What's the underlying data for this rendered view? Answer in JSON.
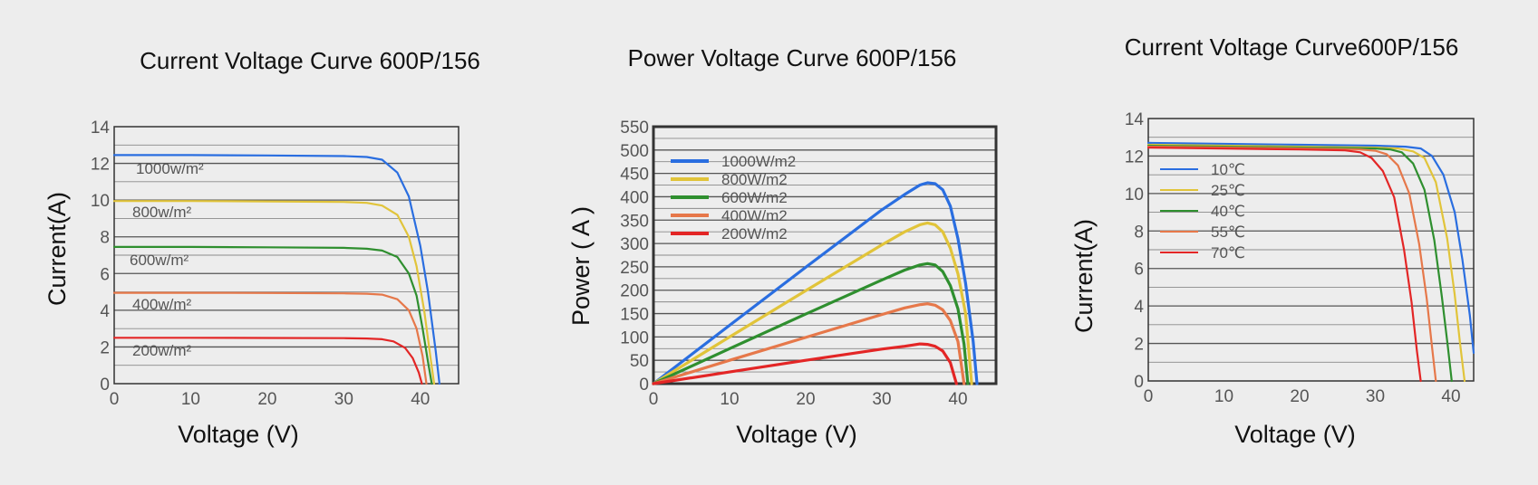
{
  "colors": {
    "blue": "#2a6ee0",
    "yellow": "#e1c43a",
    "green": "#2f8f2f",
    "orange": "#e6784a",
    "red": "#e32626",
    "frame": "#333333",
    "grid": "#7a7a7a",
    "background": "#ededed"
  },
  "chart_data": [
    {
      "type": "line",
      "title": "Current Voltage Curve 600P/156",
      "xlabel": "Voltage (V)",
      "ylabel": "Current(A)",
      "xlim": [
        0,
        45
      ],
      "ylim": [
        0,
        14
      ],
      "x_ticks": [
        "0",
        "10",
        "20",
        "30",
        "40"
      ],
      "y_ticks": [
        "0",
        "2",
        "4",
        "6",
        "8",
        "10",
        "12",
        "14"
      ],
      "grid": "horizontal",
      "series": [
        {
          "name": "1000w/m²",
          "color": "blue",
          "x": [
            0,
            10,
            20,
            30,
            33,
            35,
            37,
            38.5,
            40,
            41,
            42,
            42.5
          ],
          "y": [
            12.45,
            12.45,
            12.43,
            12.4,
            12.35,
            12.2,
            11.5,
            10.2,
            7.5,
            5.0,
            1.8,
            0
          ]
        },
        {
          "name": "800w/m²",
          "color": "yellow",
          "x": [
            0,
            10,
            20,
            30,
            33,
            35,
            37,
            38.5,
            39.5,
            40.5,
            41.3,
            41.8
          ],
          "y": [
            9.95,
            9.95,
            9.93,
            9.9,
            9.85,
            9.7,
            9.2,
            8.0,
            6.4,
            4.0,
            1.5,
            0
          ]
        },
        {
          "name": "600w/m²",
          "color": "green",
          "x": [
            0,
            10,
            20,
            30,
            33,
            35,
            37,
            38.5,
            39.5,
            40.3,
            41,
            41.5
          ],
          "y": [
            7.45,
            7.45,
            7.43,
            7.4,
            7.35,
            7.25,
            6.9,
            6.0,
            4.8,
            3.0,
            1.2,
            0
          ]
        },
        {
          "name": "400w/m²",
          "color": "orange",
          "x": [
            0,
            10,
            20,
            30,
            33,
            35,
            37,
            38.5,
            39.5,
            40.3,
            40.8
          ],
          "y": [
            4.95,
            4.95,
            4.94,
            4.92,
            4.9,
            4.85,
            4.6,
            4.0,
            3.0,
            1.5,
            0
          ]
        },
        {
          "name": "200w/m²",
          "color": "red",
          "x": [
            0,
            10,
            20,
            30,
            33,
            35,
            36.5,
            38,
            39,
            39.8,
            40.2
          ],
          "y": [
            2.5,
            2.5,
            2.49,
            2.48,
            2.46,
            2.42,
            2.3,
            1.95,
            1.4,
            0.6,
            0
          ]
        }
      ]
    },
    {
      "type": "line",
      "title": "Power Voltage Curve 600P/156",
      "xlabel": "Voltage (V)",
      "ylabel": "Power ( A )",
      "xlim": [
        0,
        45
      ],
      "ylim": [
        0,
        550
      ],
      "x_ticks": [
        "0",
        "10",
        "20",
        "30",
        "40"
      ],
      "y_ticks": [
        "0",
        "50",
        "100",
        "150",
        "200",
        "250",
        "300",
        "350",
        "400",
        "450",
        "500",
        "550"
      ],
      "grid": "horizontal",
      "legend": "top-left",
      "series": [
        {
          "name": "1000W/m2",
          "color": "blue",
          "x": [
            0,
            10,
            20,
            30,
            33,
            35,
            36,
            37,
            38,
            39,
            40,
            41,
            42,
            42.5
          ],
          "y": [
            0,
            125,
            249,
            372,
            405,
            425,
            430,
            428,
            415,
            380,
            310,
            215,
            90,
            0
          ]
        },
        {
          "name": "800W/m2",
          "color": "yellow",
          "x": [
            0,
            10,
            20,
            30,
            33,
            35,
            36,
            37,
            38,
            39,
            40,
            41,
            41.8
          ],
          "y": [
            0,
            100,
            199,
            297,
            325,
            340,
            344,
            340,
            325,
            290,
            235,
            150,
            0
          ]
        },
        {
          "name": "600W/m2",
          "color": "green",
          "x": [
            0,
            10,
            20,
            30,
            33,
            35,
            36,
            37,
            38,
            39,
            40,
            40.8,
            41.3
          ],
          "y": [
            0,
            75,
            149,
            222,
            243,
            254,
            257,
            254,
            240,
            210,
            160,
            85,
            0
          ]
        },
        {
          "name": "400W/m2",
          "color": "orange",
          "x": [
            0,
            10,
            20,
            30,
            33,
            35,
            36,
            37,
            38,
            39,
            40,
            40.8
          ],
          "y": [
            0,
            50,
            99,
            148,
            162,
            169,
            171,
            168,
            158,
            135,
            90,
            0
          ]
        },
        {
          "name": "200W/m2",
          "color": "red",
          "x": [
            0,
            10,
            20,
            30,
            33,
            35,
            36,
            37,
            38,
            39,
            39.8
          ],
          "y": [
            0,
            25,
            50,
            74,
            80,
            85,
            84,
            80,
            70,
            45,
            0
          ]
        }
      ]
    },
    {
      "type": "line",
      "title": "Current Voltage Curve600P/156",
      "xlabel": "Voltage (V)",
      "ylabel": "Current(A)",
      "xlim": [
        0,
        43
      ],
      "ylim": [
        0,
        14
      ],
      "x_ticks": [
        "0",
        "10",
        "20",
        "30",
        "40"
      ],
      "y_ticks": [
        "0",
        "2",
        "4",
        "6",
        "8",
        "10",
        "12",
        "14"
      ],
      "grid": "horizontal",
      "legend": "top-left",
      "series": [
        {
          "name": "10℃",
          "color": "blue",
          "x": [
            0,
            10,
            20,
            30,
            34,
            36,
            37.5,
            39,
            40.5,
            41.5,
            42.5,
            43
          ],
          "y": [
            12.7,
            12.65,
            12.6,
            12.55,
            12.5,
            12.4,
            12.0,
            11.0,
            9.0,
            6.5,
            3.5,
            1.5
          ]
        },
        {
          "name": "25℃",
          "color": "yellow",
          "x": [
            0,
            10,
            20,
            30,
            33,
            35,
            36.5,
            38,
            39.5,
            40.5,
            41.2,
            41.8
          ],
          "y": [
            12.6,
            12.55,
            12.5,
            12.45,
            12.4,
            12.25,
            11.9,
            10.6,
            7.6,
            4.6,
            2.0,
            0
          ]
        },
        {
          "name": "40℃",
          "color": "green",
          "x": [
            0,
            10,
            20,
            30,
            32,
            33.5,
            35,
            36.5,
            37.8,
            38.8,
            39.6,
            40.1
          ],
          "y": [
            12.55,
            12.5,
            12.45,
            12.4,
            12.35,
            12.2,
            11.6,
            10.2,
            7.5,
            4.5,
            1.8,
            0
          ]
        },
        {
          "name": "55℃",
          "color": "orange",
          "x": [
            0,
            10,
            20,
            28,
            30,
            31.5,
            33,
            34.5,
            35.8,
            36.8,
            37.5,
            38
          ],
          "y": [
            12.5,
            12.45,
            12.4,
            12.35,
            12.28,
            12.1,
            11.5,
            10.0,
            7.3,
            4.4,
            1.8,
            0
          ]
        },
        {
          "name": "70℃",
          "color": "red",
          "x": [
            0,
            10,
            20,
            26,
            28,
            29.5,
            31,
            32.5,
            33.8,
            34.8,
            35.5,
            36
          ],
          "y": [
            12.45,
            12.4,
            12.35,
            12.3,
            12.2,
            11.9,
            11.2,
            9.8,
            7.0,
            4.2,
            1.6,
            0
          ]
        }
      ]
    }
  ]
}
